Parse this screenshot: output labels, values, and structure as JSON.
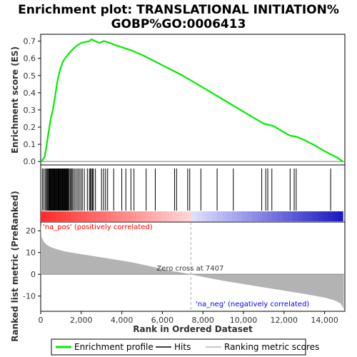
{
  "chart_data": {
    "type": "line",
    "title_line1": "Enrichment plot: TRANSLATIONAL INITIATION%",
    "title_line2": "GOBP%GO:0006413",
    "ylabel_top": "Enrichment score (ES)",
    "ylabel_bottom": "Ranked list metric (PreRanked)",
    "xlabel": "Rank in Ordered Dataset",
    "xlim": [
      0,
      15000
    ],
    "x_ticks": [
      0,
      2000,
      4000,
      6000,
      8000,
      10000,
      12000,
      14000
    ],
    "x_tick_labels": [
      "0",
      "2,000",
      "4,000",
      "6,000",
      "8,000",
      "10,000",
      "12,000",
      "14,000"
    ],
    "es_ylim": [
      -0.02,
      0.74
    ],
    "es_ticks": [
      0.0,
      0.1,
      0.2,
      0.3,
      0.4,
      0.5,
      0.6,
      0.7
    ],
    "es_tick_labels": [
      "0.0",
      "0.1",
      "0.2",
      "0.3",
      "0.4",
      "0.5",
      "0.6",
      "0.7"
    ],
    "metric_ylim": [
      -17,
      24
    ],
    "metric_ticks": [
      20,
      10,
      0,
      -10
    ],
    "metric_tick_labels": [
      "20",
      "10",
      "0",
      "-10"
    ],
    "enrichment_profile": {
      "name": "Enrichment profile",
      "color": "#00ee00",
      "x": [
        0,
        100,
        200,
        300,
        400,
        500,
        600,
        700,
        800,
        900,
        1000,
        1100,
        1200,
        1400,
        1600,
        1800,
        2000,
        2200,
        2400,
        2500,
        2700,
        2900,
        3100,
        3300,
        3600,
        4000,
        4500,
        5000,
        5500,
        6000,
        6500,
        7000,
        7500,
        8000,
        8500,
        9000,
        9500,
        10000,
        10500,
        11000,
        11200,
        11500,
        12000,
        12300,
        12600,
        13000,
        13500,
        14000,
        14300,
        14600,
        14900
      ],
      "y": [
        0.0,
        0.01,
        0.03,
        0.1,
        0.18,
        0.25,
        0.3,
        0.37,
        0.45,
        0.51,
        0.55,
        0.58,
        0.6,
        0.63,
        0.655,
        0.675,
        0.69,
        0.695,
        0.7,
        0.71,
        0.7,
        0.69,
        0.7,
        0.695,
        0.68,
        0.665,
        0.645,
        0.62,
        0.59,
        0.56,
        0.53,
        0.5,
        0.465,
        0.43,
        0.395,
        0.36,
        0.325,
        0.29,
        0.255,
        0.22,
        0.215,
        0.205,
        0.17,
        0.15,
        0.145,
        0.125,
        0.095,
        0.06,
        0.042,
        0.025,
        0.0
      ]
    },
    "hits": [
      80,
      150,
      220,
      280,
      320,
      360,
      400,
      430,
      460,
      490,
      520,
      550,
      580,
      610,
      640,
      670,
      700,
      730,
      760,
      790,
      820,
      850,
      880,
      910,
      940,
      970,
      1000,
      1030,
      1060,
      1090,
      1120,
      1150,
      1180,
      1210,
      1240,
      1270,
      1300,
      1330,
      1360,
      1400,
      1450,
      1500,
      1550,
      1600,
      1680,
      1750,
      1830,
      1900,
      1980,
      2050,
      2150,
      2300,
      2400,
      2450,
      2500,
      2550,
      2600,
      2700,
      3000,
      3100,
      3200,
      3300,
      3600,
      4000,
      4200,
      4450,
      4600,
      5200,
      5650,
      6600,
      6700,
      7250,
      7350,
      7900,
      8700,
      9500,
      10900,
      11100,
      11200,
      11400,
      12300,
      12500,
      12600,
      14300
    ],
    "ranked_metric": {
      "name": "Ranking metric scores",
      "color": "#b3b3b3",
      "x": [
        0,
        50,
        150,
        300,
        500,
        800,
        1200,
        1700,
        2500,
        3500,
        4500,
        5500,
        6500,
        7000,
        7407,
        8000,
        9000,
        10000,
        11000,
        12000,
        13000,
        14000,
        14500,
        14800,
        14950
      ],
      "y": [
        23,
        17,
        15,
        13.5,
        12.5,
        11.5,
        10.5,
        9.7,
        8.5,
        7,
        5.5,
        3.5,
        1.5,
        0.7,
        0,
        -1.2,
        -3,
        -4.5,
        -6,
        -7.5,
        -9,
        -10.7,
        -12,
        -13.5,
        -16
      ]
    },
    "zero_cross_label": "Zero cross at 7407",
    "zero_cross_x": 7407,
    "pos_label": "'na_pos' (positively correlated)",
    "neg_label": "'na_neg' (negatively correlated)",
    "pos_color": "#ff0000",
    "neg_color": "#0000ff",
    "legend": [
      {
        "label": "Enrichment profile",
        "color": "#00ee00"
      },
      {
        "label": "Hits",
        "color": "#000000"
      },
      {
        "label": "Ranking metric scores",
        "color": "#b3b3b3"
      }
    ]
  }
}
